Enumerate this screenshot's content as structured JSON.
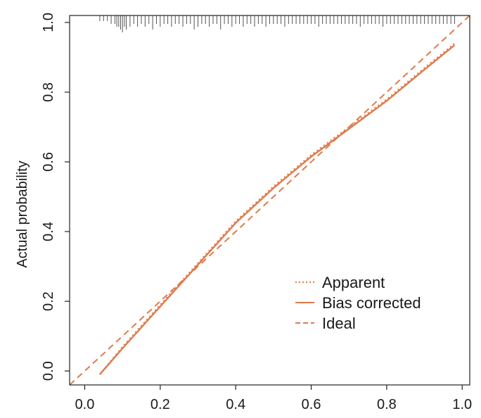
{
  "chart_data": {
    "type": "line",
    "title": "",
    "xlabel": "",
    "ylabel": "Actual probability",
    "xlim": [
      -0.04,
      1.02
    ],
    "ylim": [
      -0.04,
      1.02
    ],
    "grid": false,
    "x_ticks": [
      "0.0",
      "0.2",
      "0.4",
      "0.6",
      "0.8",
      "1.0"
    ],
    "y_ticks": [
      "0.0",
      "0.2",
      "0.4",
      "0.6",
      "0.8",
      "1.0"
    ],
    "legend_position": "bottom-right",
    "colors": {
      "curve": "#E07A4A",
      "frame": "#222222",
      "rug": "#555555"
    },
    "legend": [
      {
        "label": "Apparent",
        "style": "dotted"
      },
      {
        "label": "Bias corrected",
        "style": "solid"
      },
      {
        "label": "Ideal",
        "style": "dashed"
      }
    ],
    "series": [
      {
        "name": "Apparent",
        "style": "dotted",
        "x": [
          0.04,
          0.1,
          0.2,
          0.3,
          0.4,
          0.5,
          0.6,
          0.7,
          0.8,
          0.9,
          0.98
        ],
        "y": [
          -0.01,
          0.07,
          0.19,
          0.31,
          0.43,
          0.53,
          0.62,
          0.7,
          0.78,
          0.87,
          0.94
        ]
      },
      {
        "name": "Bias corrected",
        "style": "solid",
        "x": [
          0.04,
          0.1,
          0.2,
          0.3,
          0.4,
          0.5,
          0.6,
          0.7,
          0.8,
          0.9,
          0.98
        ],
        "y": [
          -0.01,
          0.065,
          0.185,
          0.305,
          0.425,
          0.525,
          0.615,
          0.695,
          0.775,
          0.865,
          0.935
        ]
      },
      {
        "name": "Ideal",
        "style": "dashed",
        "x": [
          -0.04,
          1.02
        ],
        "y": [
          -0.04,
          1.02
        ]
      }
    ],
    "rug": {
      "x": [
        0.04,
        0.05,
        0.06,
        0.07,
        0.08,
        0.085,
        0.09,
        0.095,
        0.1,
        0.105,
        0.11,
        0.12,
        0.13,
        0.14,
        0.15,
        0.16,
        0.17,
        0.18,
        0.19,
        0.2,
        0.21,
        0.22,
        0.23,
        0.24,
        0.25,
        0.26,
        0.27,
        0.28,
        0.29,
        0.3,
        0.31,
        0.32,
        0.33,
        0.34,
        0.35,
        0.36,
        0.37,
        0.38,
        0.39,
        0.4,
        0.41,
        0.42,
        0.43,
        0.44,
        0.45,
        0.46,
        0.47,
        0.48,
        0.49,
        0.5,
        0.51,
        0.52,
        0.53,
        0.54,
        0.55,
        0.56,
        0.57,
        0.58,
        0.59,
        0.6,
        0.61,
        0.62,
        0.63,
        0.64,
        0.65,
        0.66,
        0.67,
        0.68,
        0.69,
        0.7,
        0.71,
        0.72,
        0.73,
        0.74,
        0.75,
        0.76,
        0.77,
        0.78,
        0.79,
        0.8,
        0.81,
        0.82,
        0.83,
        0.84,
        0.85,
        0.86,
        0.87,
        0.88,
        0.89,
        0.9,
        0.91,
        0.92,
        0.93,
        0.94,
        0.95,
        0.96,
        0.97,
        0.98
      ],
      "count": [
        1,
        1,
        1,
        2,
        2,
        3,
        3,
        4,
        5,
        3,
        4,
        3,
        2,
        3,
        2,
        3,
        2,
        4,
        2,
        3,
        2,
        2,
        3,
        2,
        2,
        3,
        2,
        2,
        4,
        3,
        2,
        2,
        3,
        2,
        2,
        4,
        2,
        2,
        3,
        2,
        2,
        3,
        2,
        2,
        3,
        2,
        2,
        3,
        2,
        2,
        2,
        2,
        3,
        2,
        2,
        2,
        2,
        2,
        2,
        2,
        2,
        3,
        2,
        2,
        2,
        2,
        2,
        2,
        2,
        2,
        2,
        2,
        3,
        2,
        2,
        2,
        2,
        2,
        3,
        2,
        2,
        2,
        2,
        2,
        2,
        2,
        2,
        2,
        2,
        2,
        2,
        2,
        2,
        2,
        2,
        2,
        2,
        2
      ]
    }
  }
}
